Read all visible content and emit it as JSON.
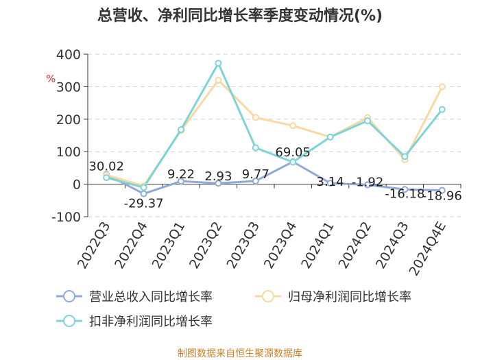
{
  "chart_data": {
    "type": "line",
    "title": "总营收、净利同比增长率季度变动情况(%)",
    "unit": "%",
    "categories": [
      "2022Q3",
      "2022Q4",
      "2023Q1",
      "2023Q2",
      "2023Q3",
      "2023Q4",
      "2024Q1",
      "2024Q2",
      "2024Q3",
      "2024Q4E"
    ],
    "ylim": [
      -100,
      400
    ],
    "yticks": [
      -100,
      0,
      100,
      200,
      300,
      400
    ],
    "grid": true,
    "legend_position": "bottom",
    "series": [
      {
        "name": "营业总收入同比增长率",
        "color": "#8fa9d8",
        "values": [
          30.02,
          -29.37,
          9.22,
          2.93,
          9.77,
          69.05,
          3.14,
          -1.92,
          -16.18,
          -18.96
        ],
        "labels": [
          "30.02",
          "-29.37",
          "9.22",
          "2.93",
          "9.77",
          "69.05",
          "3.14",
          "-1.92",
          "-16.18",
          "-18.96"
        ]
      },
      {
        "name": "归母净利润同比增长率",
        "color": "#f9d9a0",
        "values": [
          28,
          -5,
          165,
          320,
          205,
          180,
          145,
          205,
          75,
          300
        ]
      },
      {
        "name": "扣非净利润同比增长率",
        "color": "#7dd4d8",
        "values": [
          20,
          -10,
          168,
          372,
          112,
          68,
          145,
          195,
          85,
          230
        ]
      }
    ],
    "source": "制图数据来自恒生聚源数据库"
  }
}
